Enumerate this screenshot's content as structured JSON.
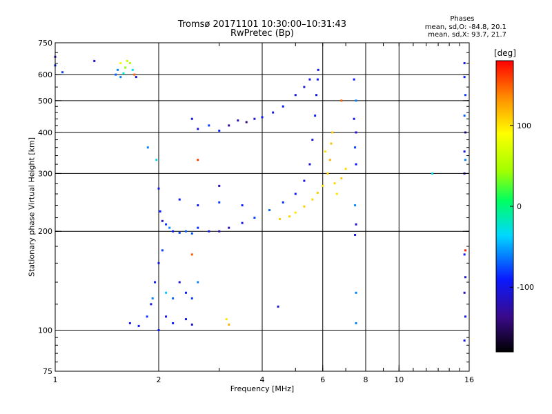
{
  "chart_data": {
    "type": "scatter",
    "title": "Tromsø 20171101 10:30:00–10:31:43",
    "subtitle": "RwPretec (Bp)",
    "stats": {
      "heading": "Phases",
      "line_o": "mean, sd,O: -84.8, 20.1",
      "line_x": "mean, sd,X:  93.7, 21.7"
    },
    "xlabel": "Frequency [MHz]",
    "ylabel": "Stationary phase Virtual Height [km]",
    "x_scale": "log",
    "y_scale": "log",
    "xlim": [
      1,
      16
    ],
    "ylim": [
      75,
      750
    ],
    "x_ticks": [
      1,
      2,
      4,
      6,
      8,
      10,
      16
    ],
    "x_tick_labels": [
      "1",
      "2",
      "4",
      "6",
      "8",
      "10",
      "16"
    ],
    "y_ticks": [
      75,
      100,
      200,
      300,
      400,
      500,
      600,
      750
    ],
    "y_tick_labels": [
      "75",
      "100",
      "200",
      "300",
      "400",
      "500",
      "600",
      "750"
    ],
    "grid_x": [
      2,
      4,
      6,
      8,
      10
    ],
    "grid_y": [
      100,
      200,
      300,
      400,
      500,
      600
    ],
    "grid": true,
    "colorbar": {
      "title": "[deg]",
      "min": -180,
      "max": 180,
      "ticks": [
        -100,
        0,
        100
      ],
      "tick_labels": [
        "-100",
        "0",
        "100"
      ]
    },
    "series": [
      {
        "points": [
          [
            1.0,
            680,
            -110
          ],
          [
            1.0,
            640,
            -90
          ],
          [
            1.05,
            610,
            -80
          ],
          [
            1.3,
            660,
            -110
          ],
          [
            1.5,
            600,
            -70
          ],
          [
            1.52,
            620,
            -60
          ],
          [
            1.55,
            590,
            -60
          ],
          [
            1.58,
            605,
            -20
          ],
          [
            1.6,
            630,
            40
          ],
          [
            1.62,
            660,
            60
          ],
          [
            1.65,
            650,
            50
          ],
          [
            1.68,
            620,
            -30
          ],
          [
            1.7,
            600,
            150
          ],
          [
            1.72,
            590,
            -100
          ],
          [
            1.55,
            650,
            80
          ],
          [
            1.86,
            360,
            -60
          ],
          [
            1.97,
            330,
            -30
          ],
          [
            2.0,
            270,
            -100
          ],
          [
            2.02,
            230,
            -90
          ],
          [
            2.05,
            215,
            -110
          ],
          [
            2.1,
            210,
            -80
          ],
          [
            2.15,
            205,
            -60
          ],
          [
            2.2,
            200,
            -90
          ],
          [
            2.3,
            198,
            -80
          ],
          [
            2.4,
            200,
            -70
          ],
          [
            2.5,
            197,
            -75
          ],
          [
            2.6,
            205,
            -85
          ],
          [
            2.8,
            200,
            -100
          ],
          [
            3.0,
            200,
            -120
          ],
          [
            3.2,
            205,
            -115
          ],
          [
            3.5,
            212,
            -100
          ],
          [
            3.8,
            220,
            -80
          ],
          [
            4.2,
            232,
            -70
          ],
          [
            4.6,
            245,
            -85
          ],
          [
            5.0,
            260,
            -90
          ],
          [
            5.3,
            285,
            -100
          ],
          [
            5.5,
            320,
            -110
          ],
          [
            5.6,
            380,
            -100
          ],
          [
            5.7,
            450,
            -90
          ],
          [
            5.75,
            520,
            -100
          ],
          [
            5.8,
            580,
            -90
          ],
          [
            5.82,
            620,
            -100
          ],
          [
            2.5,
            440,
            -100
          ],
          [
            2.6,
            410,
            -110
          ],
          [
            2.8,
            420,
            -80
          ],
          [
            3.0,
            405,
            -90
          ],
          [
            3.2,
            420,
            -130
          ],
          [
            3.4,
            435,
            -120
          ],
          [
            3.6,
            430,
            -140
          ],
          [
            3.8,
            440,
            -110
          ],
          [
            4.0,
            445,
            -90
          ],
          [
            4.3,
            460,
            -100
          ],
          [
            4.6,
            480,
            -90
          ],
          [
            5.0,
            520,
            -100
          ],
          [
            5.3,
            550,
            -110
          ],
          [
            5.5,
            580,
            -100
          ],
          [
            2.3,
            250,
            -90
          ],
          [
            2.6,
            240,
            -100
          ],
          [
            3.0,
            245,
            -80
          ],
          [
            3.5,
            240,
            -90
          ],
          [
            4.5,
            218,
            110
          ],
          [
            4.8,
            222,
            105
          ],
          [
            5.0,
            228,
            100
          ],
          [
            5.3,
            238,
            110
          ],
          [
            5.6,
            250,
            105
          ],
          [
            5.8,
            262,
            110
          ],
          [
            6.0,
            275,
            100
          ],
          [
            6.2,
            300,
            110
          ],
          [
            6.3,
            330,
            120
          ],
          [
            6.35,
            370,
            115
          ],
          [
            6.4,
            400,
            110
          ],
          [
            6.5,
            280,
            105
          ],
          [
            6.6,
            260,
            100
          ],
          [
            6.8,
            290,
            110
          ],
          [
            7.0,
            310,
            105
          ],
          [
            6.1,
            350,
            100
          ],
          [
            1.65,
            105,
            -100
          ],
          [
            1.75,
            103,
            -90
          ],
          [
            1.85,
            110,
            -80
          ],
          [
            1.9,
            120,
            -100
          ],
          [
            1.92,
            125,
            -60
          ],
          [
            1.95,
            140,
            -90
          ],
          [
            2.0,
            160,
            -100
          ],
          [
            2.05,
            175,
            -80
          ],
          [
            2.1,
            130,
            -40
          ],
          [
            2.2,
            125,
            -70
          ],
          [
            2.3,
            140,
            -100
          ],
          [
            2.4,
            130,
            -90
          ],
          [
            2.5,
            125,
            -80
          ],
          [
            2.6,
            140,
            -60
          ],
          [
            2.1,
            110,
            -100
          ],
          [
            2.2,
            105,
            -90
          ],
          [
            2.4,
            108,
            -100
          ],
          [
            2.5,
            104,
            -110
          ],
          [
            2.0,
            100,
            -90
          ],
          [
            3.15,
            108,
            100
          ],
          [
            3.2,
            104,
            120
          ],
          [
            4.45,
            118,
            -110
          ],
          [
            7.5,
            105,
            -60
          ],
          [
            2.5,
            170,
            150
          ],
          [
            3.0,
            275,
            -120
          ],
          [
            2.6,
            330,
            160
          ],
          [
            6.8,
            500,
            150
          ],
          [
            7.4,
            580,
            -90
          ],
          [
            7.5,
            500,
            -60
          ],
          [
            7.4,
            440,
            -100
          ],
          [
            7.5,
            400,
            -110
          ],
          [
            7.45,
            360,
            -80
          ],
          [
            7.5,
            320,
            -90
          ],
          [
            7.45,
            240,
            -60
          ],
          [
            7.5,
            210,
            -110
          ],
          [
            7.45,
            195,
            -100
          ],
          [
            7.5,
            130,
            -60
          ],
          [
            12.5,
            300,
            -30
          ],
          [
            15.5,
            650,
            -100
          ],
          [
            15.5,
            590,
            -90
          ],
          [
            15.6,
            520,
            -80
          ],
          [
            15.5,
            450,
            -70
          ],
          [
            15.6,
            400,
            -110
          ],
          [
            15.5,
            350,
            -100
          ],
          [
            15.6,
            330,
            -60
          ],
          [
            15.5,
            300,
            -120
          ],
          [
            15.6,
            175,
            170
          ],
          [
            15.5,
            170,
            -90
          ],
          [
            15.6,
            145,
            -110
          ],
          [
            15.5,
            130,
            -120
          ],
          [
            15.6,
            110,
            -100
          ],
          [
            15.5,
            93,
            -100
          ]
        ]
      }
    ]
  }
}
